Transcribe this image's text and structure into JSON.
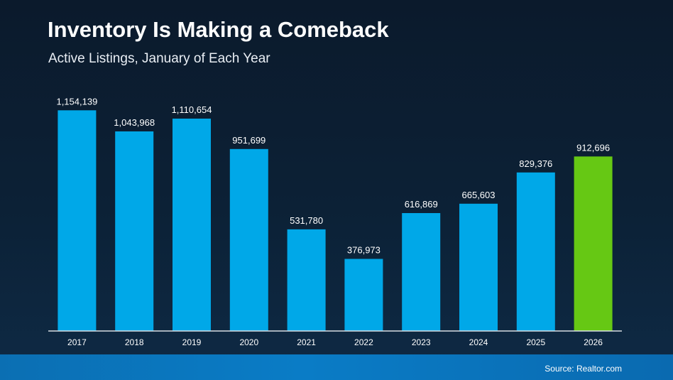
{
  "title": "Inventory Is Making a Comeback",
  "subtitle": "Active Listings, January of Each Year",
  "source": "Source: Realtor.com",
  "colors": {
    "bar": "#00a8e8",
    "highlight": "#66c814",
    "axis": "#d8dde3",
    "footer": "#0a78c2"
  },
  "chart_data": {
    "type": "bar",
    "title": "Inventory Is Making a Comeback",
    "subtitle": "Active Listings, January of Each Year",
    "xlabel": "",
    "ylabel": "",
    "ylim": [
      0,
      1200000
    ],
    "categories": [
      "2017",
      "2018",
      "2019",
      "2020",
      "2021",
      "2022",
      "2023",
      "2024",
      "2025",
      "2026"
    ],
    "values": [
      1154139,
      1043968,
      1110654,
      951699,
      531780,
      376973,
      616869,
      665603,
      829376,
      912696
    ],
    "labels": [
      "1,154,139",
      "1,043,968",
      "1,110,654",
      "951,699",
      "531,780",
      "376,973",
      "616,869",
      "665,603",
      "829,376",
      "912,696"
    ],
    "highlight_category": "2026",
    "grid": false
  }
}
